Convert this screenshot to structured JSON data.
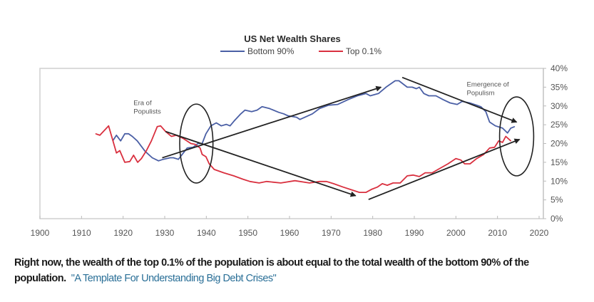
{
  "chart_data": {
    "type": "line",
    "title": "US Net Wealth Shares",
    "xlabel": "",
    "ylabel": "",
    "xlim": [
      1900,
      2020
    ],
    "ylim": [
      0,
      40
    ],
    "x_ticks": [
      "1900",
      "1910",
      "1920",
      "1930",
      "1940",
      "1950",
      "1960",
      "1970",
      "1980",
      "1990",
      "2000",
      "2010",
      "2020"
    ],
    "y_ticks": [
      "0%",
      "5%",
      "10%",
      "15%",
      "20%",
      "25%",
      "30%",
      "35%",
      "40%"
    ],
    "y_axis_side": "right",
    "grid": false,
    "legend_position": "top-center",
    "series": [
      {
        "name": "Bottom 90%",
        "color": "#4a5fa5",
        "points": [
          [
            1917.5,
            20.7
          ],
          [
            1918.4,
            22.2
          ],
          [
            1919.4,
            20.7
          ],
          [
            1920.4,
            22.6
          ],
          [
            1921.3,
            22.6
          ],
          [
            1922.2,
            21.9
          ],
          [
            1923.4,
            20.7
          ],
          [
            1925.3,
            17.9
          ],
          [
            1927.0,
            16.2
          ],
          [
            1928.5,
            15.4
          ],
          [
            1929.6,
            15.8
          ],
          [
            1931.3,
            16.2
          ],
          [
            1932.1,
            16.2
          ],
          [
            1933.3,
            15.8
          ],
          [
            1934.2,
            17.1
          ],
          [
            1935.4,
            18.8
          ],
          [
            1936.8,
            19.0
          ],
          [
            1938.0,
            20.0
          ],
          [
            1939.0,
            20.0
          ],
          [
            1939.9,
            22.6
          ],
          [
            1941.1,
            24.7
          ],
          [
            1942.4,
            25.5
          ],
          [
            1943.6,
            24.7
          ],
          [
            1944.8,
            25.1
          ],
          [
            1945.7,
            24.7
          ],
          [
            1946.7,
            26.0
          ],
          [
            1948.3,
            27.9
          ],
          [
            1949.3,
            28.9
          ],
          [
            1950.9,
            28.5
          ],
          [
            1952.2,
            28.9
          ],
          [
            1953.4,
            29.8
          ],
          [
            1955.2,
            29.3
          ],
          [
            1957.4,
            28.3
          ],
          [
            1958.6,
            27.9
          ],
          [
            1959.6,
            27.4
          ],
          [
            1961.7,
            27.0
          ],
          [
            1962.5,
            26.4
          ],
          [
            1963.7,
            27.0
          ],
          [
            1965.5,
            27.9
          ],
          [
            1967.2,
            29.3
          ],
          [
            1969.4,
            30.2
          ],
          [
            1971.6,
            30.4
          ],
          [
            1974.1,
            31.7
          ],
          [
            1976.3,
            32.7
          ],
          [
            1978.4,
            33.3
          ],
          [
            1979.4,
            32.7
          ],
          [
            1981.4,
            33.3
          ],
          [
            1983.2,
            35.0
          ],
          [
            1985.4,
            36.7
          ],
          [
            1986.3,
            36.7
          ],
          [
            1988.3,
            35.0
          ],
          [
            1989.5,
            35.0
          ],
          [
            1990.5,
            34.6
          ],
          [
            1991.2,
            35.0
          ],
          [
            1992.3,
            33.3
          ],
          [
            1993.5,
            32.7
          ],
          [
            1995.2,
            32.7
          ],
          [
            1996.9,
            31.7
          ],
          [
            1998.6,
            30.8
          ],
          [
            2000.3,
            30.4
          ],
          [
            2001.5,
            31.2
          ],
          [
            2003.3,
            30.8
          ],
          [
            2005.0,
            30.2
          ],
          [
            2006.0,
            29.8
          ],
          [
            2007.2,
            28.5
          ],
          [
            2008.1,
            25.7
          ],
          [
            2009.5,
            24.7
          ],
          [
            2011.2,
            24.1
          ],
          [
            2012.4,
            22.8
          ],
          [
            2013.2,
            24.1
          ],
          [
            2014.1,
            24.5
          ]
        ]
      },
      {
        "name": "Top 0.1%",
        "color": "#d9303f",
        "points": [
          [
            1913.4,
            22.6
          ],
          [
            1914.4,
            22.2
          ],
          [
            1916.5,
            24.7
          ],
          [
            1917.5,
            20.9
          ],
          [
            1918.4,
            17.5
          ],
          [
            1919.2,
            18.1
          ],
          [
            1920.4,
            15.0
          ],
          [
            1921.6,
            15.2
          ],
          [
            1922.5,
            16.9
          ],
          [
            1923.5,
            15.0
          ],
          [
            1924.4,
            16.0
          ],
          [
            1925.6,
            18.1
          ],
          [
            1926.8,
            20.7
          ],
          [
            1928.2,
            24.5
          ],
          [
            1929.0,
            24.7
          ],
          [
            1930.2,
            23.2
          ],
          [
            1931.6,
            21.9
          ],
          [
            1932.8,
            22.2
          ],
          [
            1934.5,
            21.3
          ],
          [
            1936.3,
            20.0
          ],
          [
            1937.3,
            19.8
          ],
          [
            1938.5,
            18.8
          ],
          [
            1939.0,
            17.1
          ],
          [
            1939.9,
            16.5
          ],
          [
            1940.7,
            14.6
          ],
          [
            1941.9,
            13.1
          ],
          [
            1944.2,
            12.2
          ],
          [
            1946.6,
            11.4
          ],
          [
            1948.8,
            10.5
          ],
          [
            1950.5,
            9.9
          ],
          [
            1952.7,
            9.5
          ],
          [
            1954.5,
            9.9
          ],
          [
            1957.9,
            9.5
          ],
          [
            1961.3,
            10.1
          ],
          [
            1964.8,
            9.5
          ],
          [
            1967.2,
            9.9
          ],
          [
            1968.9,
            9.9
          ],
          [
            1970.6,
            9.3
          ],
          [
            1972.9,
            8.4
          ],
          [
            1975.1,
            7.6
          ],
          [
            1976.8,
            7.0
          ],
          [
            1978.4,
            7.0
          ],
          [
            1979.7,
            7.8
          ],
          [
            1981.1,
            8.4
          ],
          [
            1982.3,
            9.3
          ],
          [
            1983.5,
            8.9
          ],
          [
            1984.9,
            9.5
          ],
          [
            1986.6,
            9.5
          ],
          [
            1988.3,
            11.4
          ],
          [
            1989.7,
            11.6
          ],
          [
            1991.2,
            11.2
          ],
          [
            1992.6,
            12.2
          ],
          [
            1994.3,
            12.2
          ],
          [
            1995.7,
            13.1
          ],
          [
            1998.1,
            14.6
          ],
          [
            2000.0,
            16.0
          ],
          [
            2001.2,
            15.6
          ],
          [
            2002.1,
            14.6
          ],
          [
            2003.4,
            14.6
          ],
          [
            2005.0,
            16.0
          ],
          [
            2006.7,
            17.1
          ],
          [
            2008.1,
            18.8
          ],
          [
            2009.3,
            19.0
          ],
          [
            2010.3,
            20.7
          ],
          [
            2011.2,
            20.3
          ],
          [
            2012.0,
            21.9
          ],
          [
            2013.2,
            20.7
          ]
        ]
      }
    ],
    "annotations": {
      "texts": [
        {
          "lines": [
            "Era of",
            "Populists"
          ],
          "year": 1922.5,
          "value": 30.2
        },
        {
          "lines": [
            "Emergence of",
            "Populism"
          ],
          "year": 2002.6,
          "value": 35.2
        }
      ],
      "arrows": [
        {
          "from": [
            1929.4,
            16.2
          ],
          "to": [
            1982.0,
            35.0
          ]
        },
        {
          "from": [
            1930.2,
            23.2
          ],
          "to": [
            1975.9,
            6.1
          ]
        },
        {
          "from": [
            1987.1,
            37.6
          ],
          "to": [
            2014.6,
            25.7
          ]
        },
        {
          "from": [
            1979.0,
            5.1
          ],
          "to": [
            2015.3,
            21.1
          ]
        }
      ],
      "ellipses": [
        {
          "center": [
            1937.6,
            20.0
          ],
          "half_width_years": 4.0,
          "half_height_pct": 10.5
        },
        {
          "center": [
            2014.6,
            21.9
          ],
          "half_width_years": 4.1,
          "half_height_pct": 10.5
        }
      ]
    }
  },
  "caption": {
    "text": "Right now, the wealth of the top 0.1% of the population is about equal to the total wealth of the bottom 90% of the population.",
    "link_text": "\"A Template For Understanding Big Debt Crises\"",
    "link_color": "#2a6f97"
  }
}
